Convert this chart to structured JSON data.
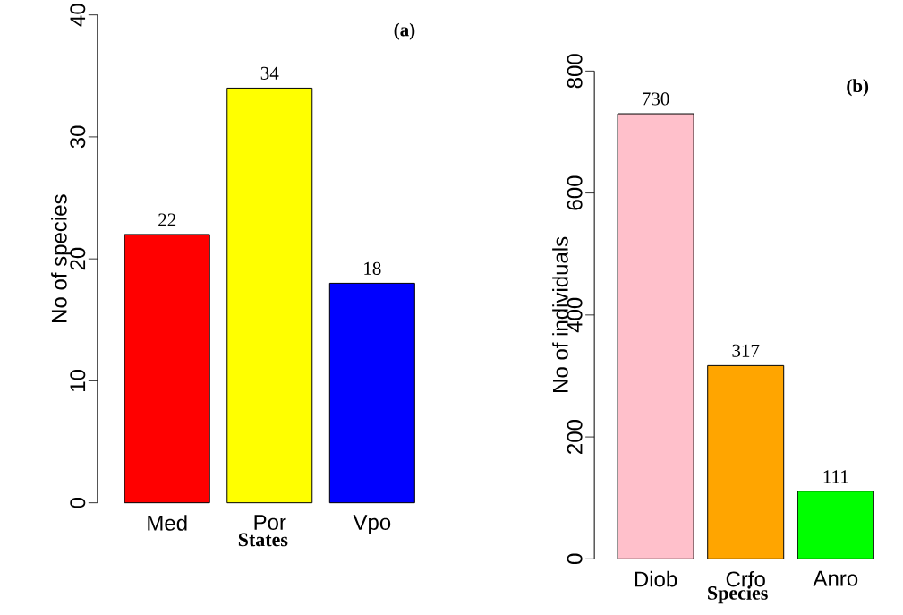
{
  "chart_data": [
    {
      "type": "bar",
      "categories": [
        "Med",
        "Por",
        "Vpo"
      ],
      "values": [
        22,
        34,
        18
      ],
      "colors": [
        "#ff0000",
        "#ffff00",
        "#0000ff"
      ],
      "ylabel": "No of species",
      "xlabel": "States",
      "ylim": [
        0,
        40
      ],
      "yticks": [
        0,
        10,
        20,
        30,
        40
      ],
      "data_labels": true,
      "annotations": [
        "(a)"
      ]
    },
    {
      "type": "bar",
      "categories": [
        "Diob",
        "Crfo",
        "Anro"
      ],
      "values": [
        730,
        317,
        111
      ],
      "colors": [
        "#ffc0cb",
        "#ffa500",
        "#00ff00"
      ],
      "ylabel": "No of individuals",
      "xlabel": "Species",
      "ylim": [
        0,
        800
      ],
      "yticks": [
        0,
        200,
        400,
        600,
        800
      ],
      "data_labels": true,
      "annotations": [
        "(b)"
      ]
    }
  ]
}
